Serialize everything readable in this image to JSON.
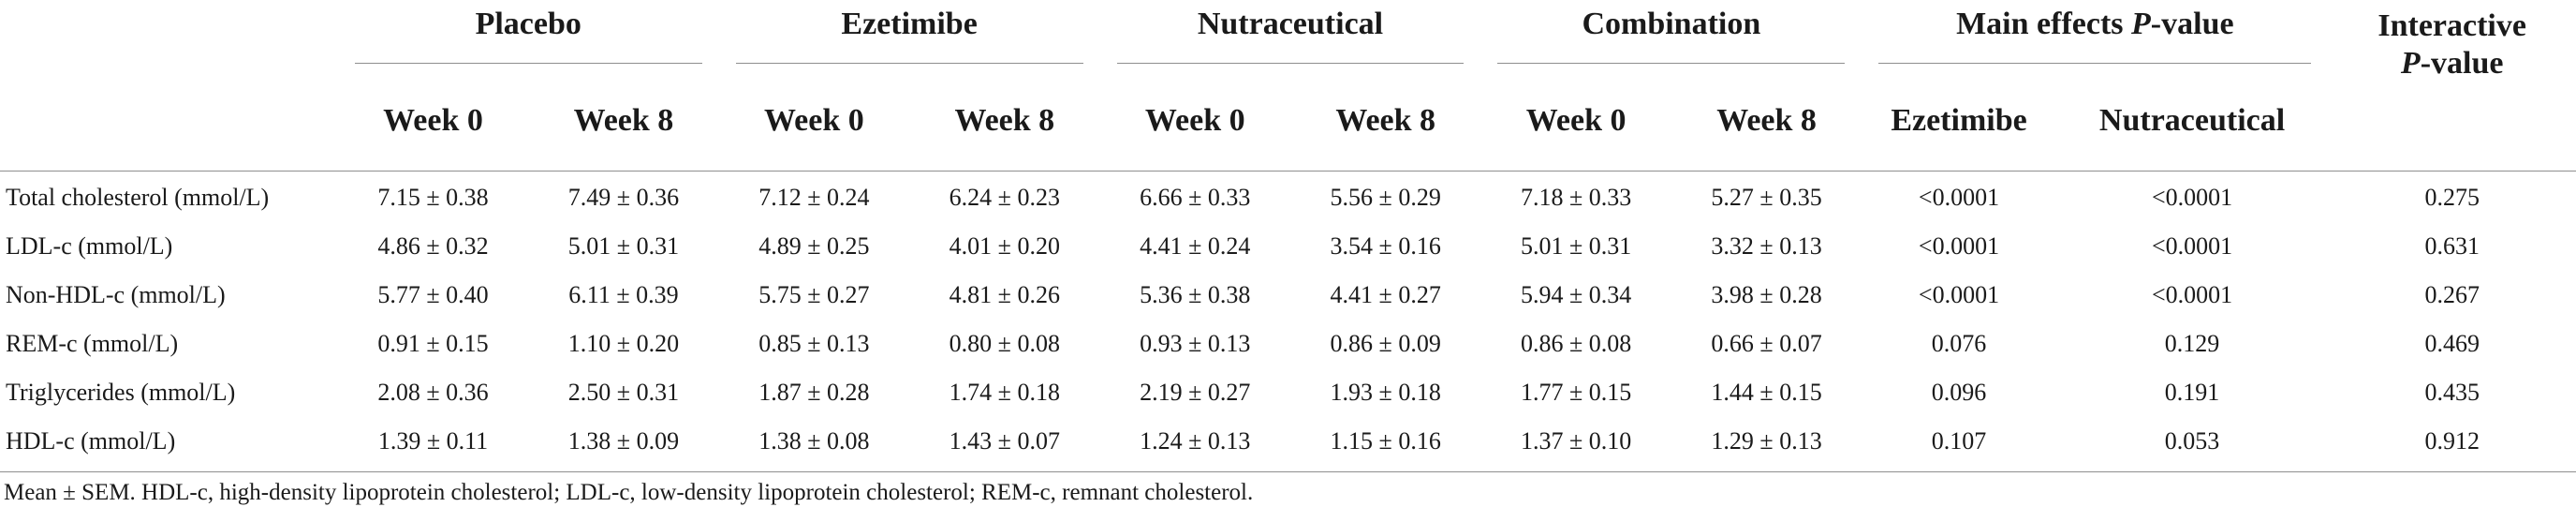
{
  "groups": [
    {
      "label": "Placebo"
    },
    {
      "label": "Ezetimibe"
    },
    {
      "label": "Nutraceutical"
    },
    {
      "label": "Combination"
    }
  ],
  "main_effects": {
    "label_prefix": "Main effects ",
    "label_italic": "P",
    "label_suffix": "-value"
  },
  "interactive": {
    "line1": "Interactive",
    "italic": "P",
    "line2_suffix": "-value"
  },
  "subheaders": {
    "week0": "Week 0",
    "week8": "Week 8",
    "me_ezetimibe": "Ezetimibe",
    "me_nutraceutical": "Nutraceutical"
  },
  "rows": [
    {
      "label": "Total cholesterol (mmol/L)",
      "values": [
        "7.15 ± 0.38",
        "7.49 ± 0.36",
        "7.12 ± 0.24",
        "6.24 ± 0.23",
        "6.66 ± 0.33",
        "5.56 ± 0.29",
        "7.18 ± 0.33",
        "5.27 ± 0.35"
      ],
      "p_ezetimibe": "<0.0001",
      "p_nutraceutical": "<0.0001",
      "p_interactive": "0.275"
    },
    {
      "label": "LDL-c (mmol/L)",
      "values": [
        "4.86 ± 0.32",
        "5.01 ± 0.31",
        "4.89 ± 0.25",
        "4.01 ± 0.20",
        "4.41 ± 0.24",
        "3.54 ± 0.16",
        "5.01 ± 0.31",
        "3.32 ± 0.13"
      ],
      "p_ezetimibe": "<0.0001",
      "p_nutraceutical": "<0.0001",
      "p_interactive": "0.631"
    },
    {
      "label": "Non-HDL-c (mmol/L)",
      "values": [
        "5.77 ± 0.40",
        "6.11 ± 0.39",
        "5.75 ± 0.27",
        "4.81 ± 0.26",
        "5.36 ± 0.38",
        "4.41 ± 0.27",
        "5.94 ± 0.34",
        "3.98 ± 0.28"
      ],
      "p_ezetimibe": "<0.0001",
      "p_nutraceutical": "<0.0001",
      "p_interactive": "0.267"
    },
    {
      "label": "REM-c (mmol/L)",
      "values": [
        "0.91 ± 0.15",
        "1.10 ± 0.20",
        "0.85 ± 0.13",
        "0.80 ± 0.08",
        "0.93 ± 0.13",
        "0.86 ± 0.09",
        "0.86 ± 0.08",
        "0.66 ± 0.07"
      ],
      "p_ezetimibe": "0.076",
      "p_nutraceutical": "0.129",
      "p_interactive": "0.469"
    },
    {
      "label": "Triglycerides (mmol/L)",
      "values": [
        "2.08 ± 0.36",
        "2.50 ± 0.31",
        "1.87 ± 0.28",
        "1.74 ± 0.18",
        "2.19 ± 0.27",
        "1.93 ± 0.18",
        "1.77 ± 0.15",
        "1.44 ± 0.15"
      ],
      "p_ezetimibe": "0.096",
      "p_nutraceutical": "0.191",
      "p_interactive": "0.435"
    },
    {
      "label": "HDL-c (mmol/L)",
      "values": [
        "1.39 ± 0.11",
        "1.38 ± 0.09",
        "1.38 ± 0.08",
        "1.43 ± 0.07",
        "1.24 ± 0.13",
        "1.15 ± 0.16",
        "1.37 ± 0.10",
        "1.29 ± 0.13"
      ],
      "p_ezetimibe": "0.107",
      "p_nutraceutical": "0.053",
      "p_interactive": "0.912"
    }
  ],
  "footnote": "Mean ± SEM. HDL-c, high-density lipoprotein cholesterol; LDL-c, low-density lipoprotein cholesterol; REM-c, remnant cholesterol."
}
